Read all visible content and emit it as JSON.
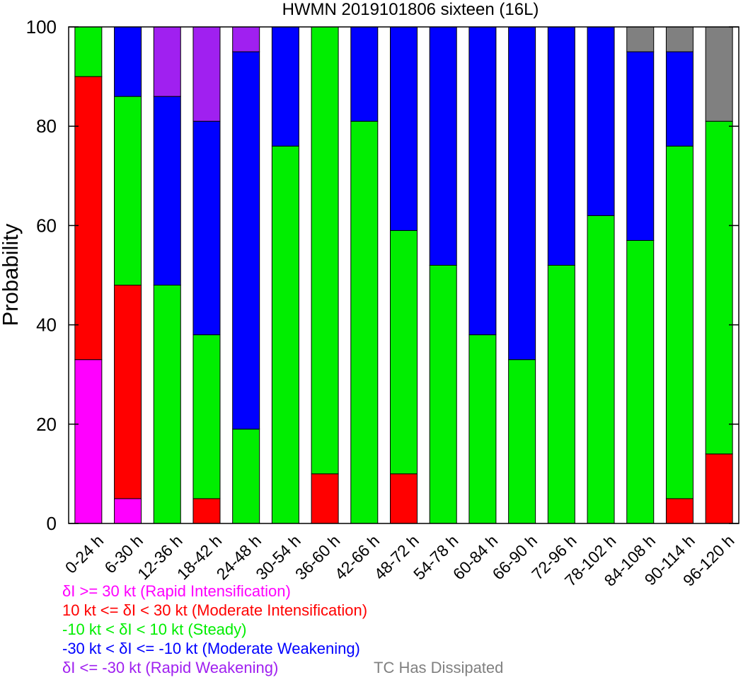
{
  "chart_data": {
    "type": "bar",
    "stacked": true,
    "title": "HWMN 2019101806 sixteen (16L)",
    "ylabel": "Probability",
    "xlabel": "",
    "ylim": [
      0,
      100
    ],
    "yticks": [
      0,
      20,
      40,
      60,
      80,
      100
    ],
    "categories": [
      "0-24 h",
      "6-30 h",
      "12-36 h",
      "18-42 h",
      "24-48 h",
      "30-54 h",
      "36-60 h",
      "42-66 h",
      "48-72 h",
      "54-78 h",
      "60-84 h",
      "66-90 h",
      "72-96 h",
      "78-102 h",
      "84-108 h",
      "90-114 h",
      "96-120 h"
    ],
    "series": [
      {
        "name": "δI >= 30 kt (Rapid Intensification)",
        "color": "#ff00ff",
        "values": [
          33,
          5,
          0,
          0,
          0,
          0,
          0,
          0,
          0,
          0,
          0,
          0,
          0,
          0,
          0,
          0,
          0
        ]
      },
      {
        "name": "10 kt <= δI < 30 kt (Moderate Intensification)",
        "color": "#ff0000",
        "values": [
          57,
          43,
          0,
          5,
          0,
          0,
          10,
          0,
          10,
          0,
          0,
          0,
          0,
          0,
          0,
          5,
          14
        ]
      },
      {
        "name": "-10 kt < δI < 10 kt (Steady)",
        "color": "#00ee00",
        "values": [
          10,
          38,
          48,
          33,
          19,
          76,
          90,
          81,
          49,
          52,
          38,
          33,
          52,
          62,
          57,
          71,
          67
        ]
      },
      {
        "name": "-30 kt < δI <= -10 kt (Moderate Weakening)",
        "color": "#0000ff",
        "values": [
          0,
          14,
          38,
          43,
          76,
          24,
          0,
          19,
          41,
          48,
          62,
          67,
          48,
          38,
          38,
          19,
          0
        ]
      },
      {
        "name": "δI <= -30 kt (Rapid Weakening)",
        "color": "#a020f0",
        "values": [
          0,
          0,
          14,
          19,
          5,
          0,
          0,
          0,
          0,
          0,
          0,
          0,
          0,
          0,
          0,
          0,
          0
        ]
      },
      {
        "name": "TC Has Dissipated",
        "color": "#808080",
        "values": [
          0,
          0,
          0,
          0,
          0,
          0,
          0,
          0,
          0,
          0,
          0,
          0,
          0,
          0,
          5,
          5,
          19
        ]
      }
    ],
    "grid": false,
    "legend_position": "bottom-left"
  }
}
